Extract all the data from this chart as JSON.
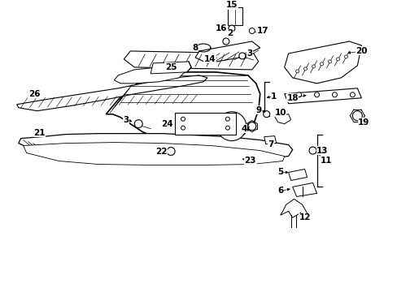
{
  "bg": "#ffffff",
  "lc": "#000000",
  "fw": 4.89,
  "fh": 3.6,
  "dpi": 100,
  "fs": 7.5
}
